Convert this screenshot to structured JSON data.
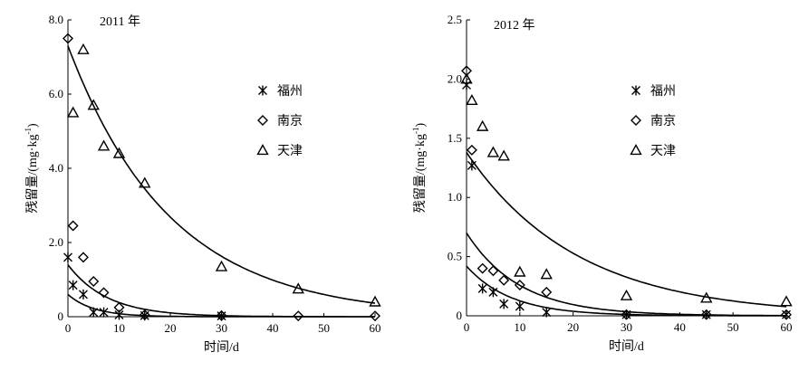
{
  "chart_data": [
    {
      "type": "scatter",
      "title": "2011 年",
      "xlabel": "时间/d",
      "ylabel": "残留量/(mg·kg",
      "ylabel_sup": "-1",
      "ylabel_close": ")",
      "xlim": [
        0,
        60
      ],
      "ylim": [
        0,
        8
      ],
      "xticks": [
        0,
        10,
        20,
        30,
        40,
        50,
        60
      ],
      "xtick_labels": [
        "0",
        "10",
        "20",
        "30",
        "40",
        "50",
        "60"
      ],
      "yticks": [
        0,
        2,
        4,
        6,
        8
      ],
      "ytick_labels": [
        "0",
        "2.0",
        "4.0",
        "6.0",
        "8.0"
      ],
      "series": [
        {
          "name": "福州",
          "marker": "star",
          "points": [
            [
              0,
              1.6
            ],
            [
              1,
              0.85
            ],
            [
              3,
              0.6
            ],
            [
              5,
              0.12
            ],
            [
              7,
              0.12
            ],
            [
              10,
              0.05
            ],
            [
              15,
              0.03
            ],
            [
              30,
              0.02
            ]
          ],
          "fit": {
            "a": 0.6,
            "k": 0.2
          }
        },
        {
          "name": "南京",
          "marker": "diamond",
          "points": [
            [
              0,
              7.5
            ],
            [
              1,
              2.45
            ],
            [
              3,
              1.6
            ],
            [
              5,
              0.95
            ],
            [
              7,
              0.65
            ],
            [
              10,
              0.25
            ],
            [
              15,
              0.05
            ],
            [
              30,
              0.03
            ],
            [
              45,
              0.02
            ],
            [
              60,
              0.02
            ]
          ],
          "fit": {
            "a": 1.4,
            "k": 0.13
          }
        },
        {
          "name": "天津",
          "marker": "triangle",
          "points": [
            [
              1,
              5.5
            ],
            [
              3,
              7.2
            ],
            [
              5,
              5.7
            ],
            [
              7,
              4.6
            ],
            [
              10,
              4.4
            ],
            [
              15,
              3.6
            ],
            [
              30,
              1.35
            ],
            [
              45,
              0.75
            ],
            [
              60,
              0.4
            ]
          ],
          "fit": {
            "a": 7.3,
            "k": 0.05
          }
        }
      ]
    },
    {
      "type": "scatter",
      "title": "2012 年",
      "xlabel": "时间/d",
      "ylabel": "残留量/(mg·kg",
      "ylabel_sup": "-1",
      "ylabel_close": ")",
      "xlim": [
        0,
        60
      ],
      "ylim": [
        0,
        2.5
      ],
      "xticks": [
        0,
        10,
        20,
        30,
        40,
        50,
        60
      ],
      "xtick_labels": [
        "0",
        "10",
        "20",
        "30",
        "40",
        "50",
        "60"
      ],
      "yticks": [
        0,
        0.5,
        1.0,
        1.5,
        2.0,
        2.5
      ],
      "ytick_labels": [
        "0",
        "0.5",
        "1.0",
        "1.5",
        "2.0",
        "2.5"
      ],
      "series": [
        {
          "name": "福州",
          "marker": "star",
          "points": [
            [
              0,
              1.95
            ],
            [
              1,
              1.27
            ],
            [
              3,
              0.23
            ],
            [
              5,
              0.2
            ],
            [
              7,
              0.1
            ],
            [
              10,
              0.08
            ],
            [
              15,
              0.03
            ],
            [
              30,
              0.01
            ],
            [
              45,
              0.01
            ],
            [
              60,
              0.01
            ]
          ],
          "fit": {
            "a": 0.42,
            "k": 0.12
          }
        },
        {
          "name": "南京",
          "marker": "diamond",
          "points": [
            [
              0,
              2.07
            ],
            [
              1,
              1.4
            ],
            [
              3,
              0.4
            ],
            [
              5,
              0.38
            ],
            [
              7,
              0.3
            ],
            [
              10,
              0.26
            ],
            [
              15,
              0.2
            ],
            [
              30,
              0.01
            ],
            [
              45,
              0.01
            ],
            [
              60,
              0.01
            ]
          ],
          "fit": {
            "a": 0.7,
            "k": 0.1
          }
        },
        {
          "name": "天津",
          "marker": "triangle",
          "points": [
            [
              0,
              2.0
            ],
            [
              1,
              1.82
            ],
            [
              3,
              1.6
            ],
            [
              5,
              1.38
            ],
            [
              7,
              1.35
            ],
            [
              10,
              0.37
            ],
            [
              15,
              0.35
            ],
            [
              30,
              0.17
            ],
            [
              45,
              0.15
            ],
            [
              60,
              0.12
            ]
          ],
          "fit": {
            "a": 1.38,
            "k": 0.048
          }
        }
      ]
    }
  ]
}
